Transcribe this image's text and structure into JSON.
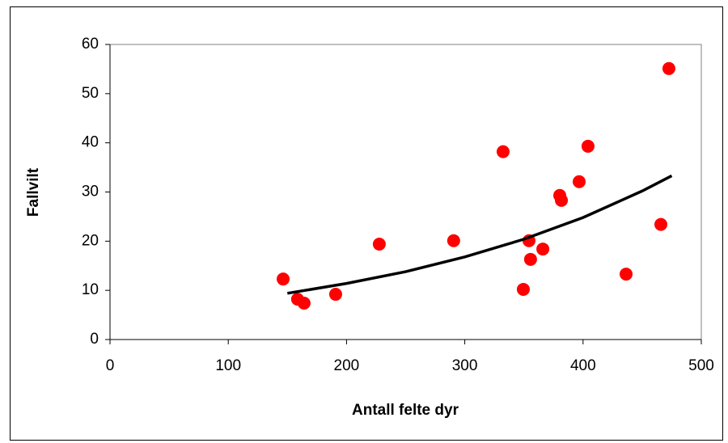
{
  "chart_data": {
    "type": "scatter",
    "x_label": "Antall felte dyr",
    "y_label": "Fallvilt",
    "xlim": [
      0,
      500
    ],
    "xticks": [
      0,
      100,
      200,
      300,
      400,
      500
    ],
    "ylim": [
      0,
      60
    ],
    "yticks": [
      0,
      10,
      20,
      30,
      40,
      50,
      60
    ],
    "series": [
      {
        "mode": "markers",
        "color": "#ff0000",
        "x": [
          146.4,
          158.6,
          164.1,
          190.8,
          227.7,
          290.6,
          332.4,
          349.5,
          354.3,
          355.6,
          366,
          380.3,
          381.7,
          396.7,
          404.2,
          436.4,
          465.8,
          472.6
        ],
        "values": [
          12.3,
          8.2,
          7.4,
          9.2,
          19.4,
          20.1,
          38.2,
          10.2,
          20.1,
          16.3,
          18.4,
          29.3,
          28.3,
          32.1,
          39.3,
          13.3,
          23.4,
          55.1
        ]
      },
      {
        "mode": "line",
        "color": "#000000",
        "x": [
          150,
          200,
          250,
          300,
          350,
          400,
          450,
          475
        ],
        "values": [
          9.4,
          11.4,
          13.8,
          16.8,
          20.4,
          24.8,
          30.2,
          33.3
        ]
      }
    ]
  }
}
